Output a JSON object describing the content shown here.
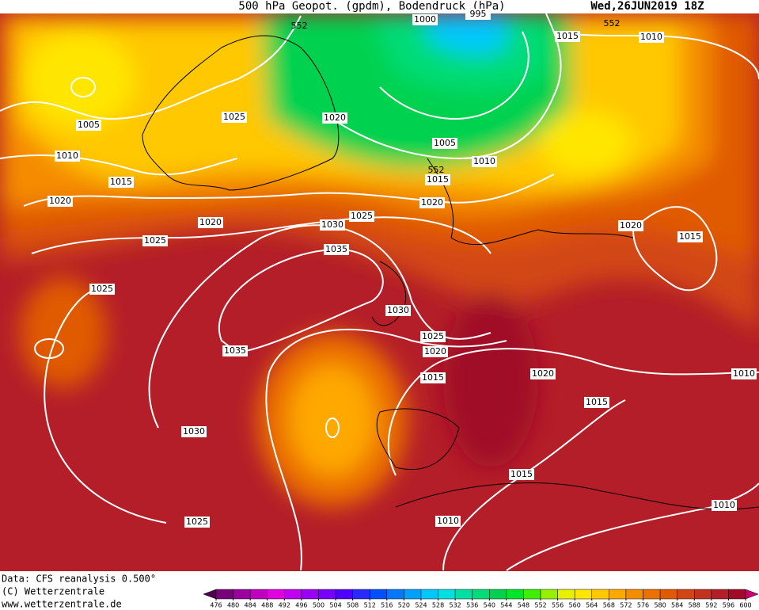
{
  "header": {
    "title": "500 hPa Geopot. (gpdm), Bodendruck (hPa)",
    "date": "Wed,26JUN2019 18Z"
  },
  "isobar_labels": [
    1005,
    1025,
    1020,
    1010,
    1015,
    1020,
    1020,
    1025,
    1025,
    1030,
    1035,
    1025,
    1035,
    1030,
    1025,
    1020,
    1015,
    1030,
    1025,
    1005,
    1010,
    1015,
    1020,
    1015,
    1010,
    1000,
    1020,
    1015,
    1020,
    1015,
    1010,
    1015,
    1010,
    1010,
    995
  ],
  "contour_labels": [
    552,
    552,
    552
  ],
  "footer": {
    "source": "Data: CFS reanalysis 0.500°",
    "copyright": "(C) Wetterzentrale",
    "url": "www.wetterzentrale.de"
  },
  "colorbar": {
    "values": [
      476,
      480,
      484,
      488,
      492,
      496,
      500,
      504,
      508,
      512,
      516,
      520,
      524,
      528,
      532,
      536,
      540,
      544,
      548,
      552,
      556,
      560,
      564,
      568,
      572,
      576,
      580,
      584,
      588,
      592,
      596,
      600
    ],
    "colors": [
      "#4d004d",
      "#78007a",
      "#9b009e",
      "#c000c0",
      "#e000e0",
      "#c000f0",
      "#9a00f5",
      "#7800ff",
      "#5000ff",
      "#2828ff",
      "#0050ff",
      "#0078ff",
      "#00a0ff",
      "#00c8ff",
      "#00e0e0",
      "#00e0a0",
      "#00dc78",
      "#00d250",
      "#00e628",
      "#3cf000",
      "#96f000",
      "#e6f000",
      "#ffe600",
      "#ffc800",
      "#ffa800",
      "#f58c00",
      "#eb7000",
      "#e05a00",
      "#d24614",
      "#c3321e",
      "#b41e28",
      "#a00a28",
      "#c8006e"
    ]
  }
}
